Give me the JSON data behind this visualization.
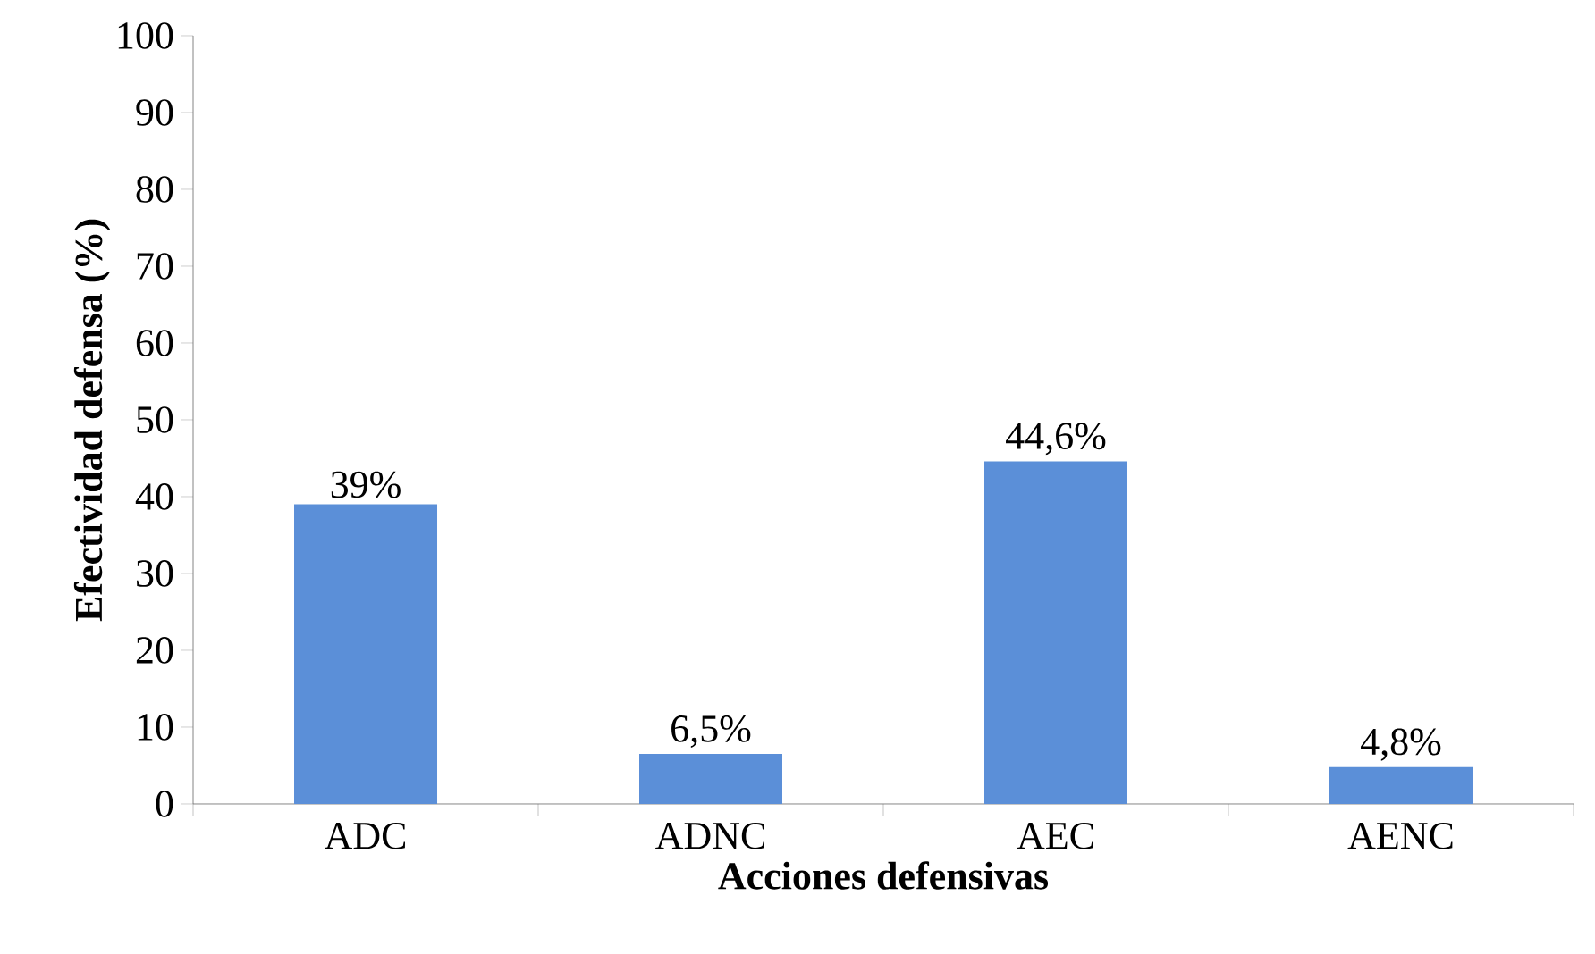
{
  "chart_data": {
    "type": "bar",
    "xlabel": "Acciones defensivas",
    "ylabel": "Efectividad defensa (%)",
    "categories": [
      "ADC",
      "ADNC",
      "AEC",
      "AENC"
    ],
    "values": [
      39,
      6.5,
      44.6,
      4.8
    ],
    "value_labels": [
      "39%",
      "6,5%",
      "44,6%",
      "4,8%"
    ],
    "color": "#5b8fd8",
    "ylim": [
      0,
      100
    ],
    "yticks": [
      0,
      10,
      20,
      30,
      40,
      50,
      60,
      70,
      80,
      90,
      100
    ]
  }
}
